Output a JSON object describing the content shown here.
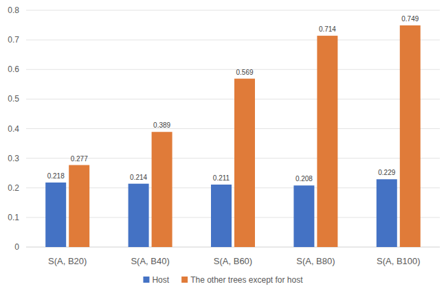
{
  "chart_data": {
    "type": "bar",
    "categories": [
      "S(A, B20)",
      "S(A, B40)",
      "S(A, B60)",
      "S(A, B80)",
      "S(A, B100)"
    ],
    "series": [
      {
        "name": "Host",
        "color": "#4472c4",
        "values": [
          0.218,
          0.214,
          0.211,
          0.208,
          0.229
        ]
      },
      {
        "name": "The other trees except for host",
        "color": "#e07b39",
        "values": [
          0.277,
          0.389,
          0.569,
          0.714,
          0.749
        ]
      }
    ],
    "ylim": [
      0,
      0.8
    ],
    "yticks": [
      0,
      0.1,
      0.2,
      0.3,
      0.4,
      0.5,
      0.6,
      0.7,
      0.8
    ],
    "grid": true,
    "data_labels": true,
    "legend": "bottom"
  }
}
